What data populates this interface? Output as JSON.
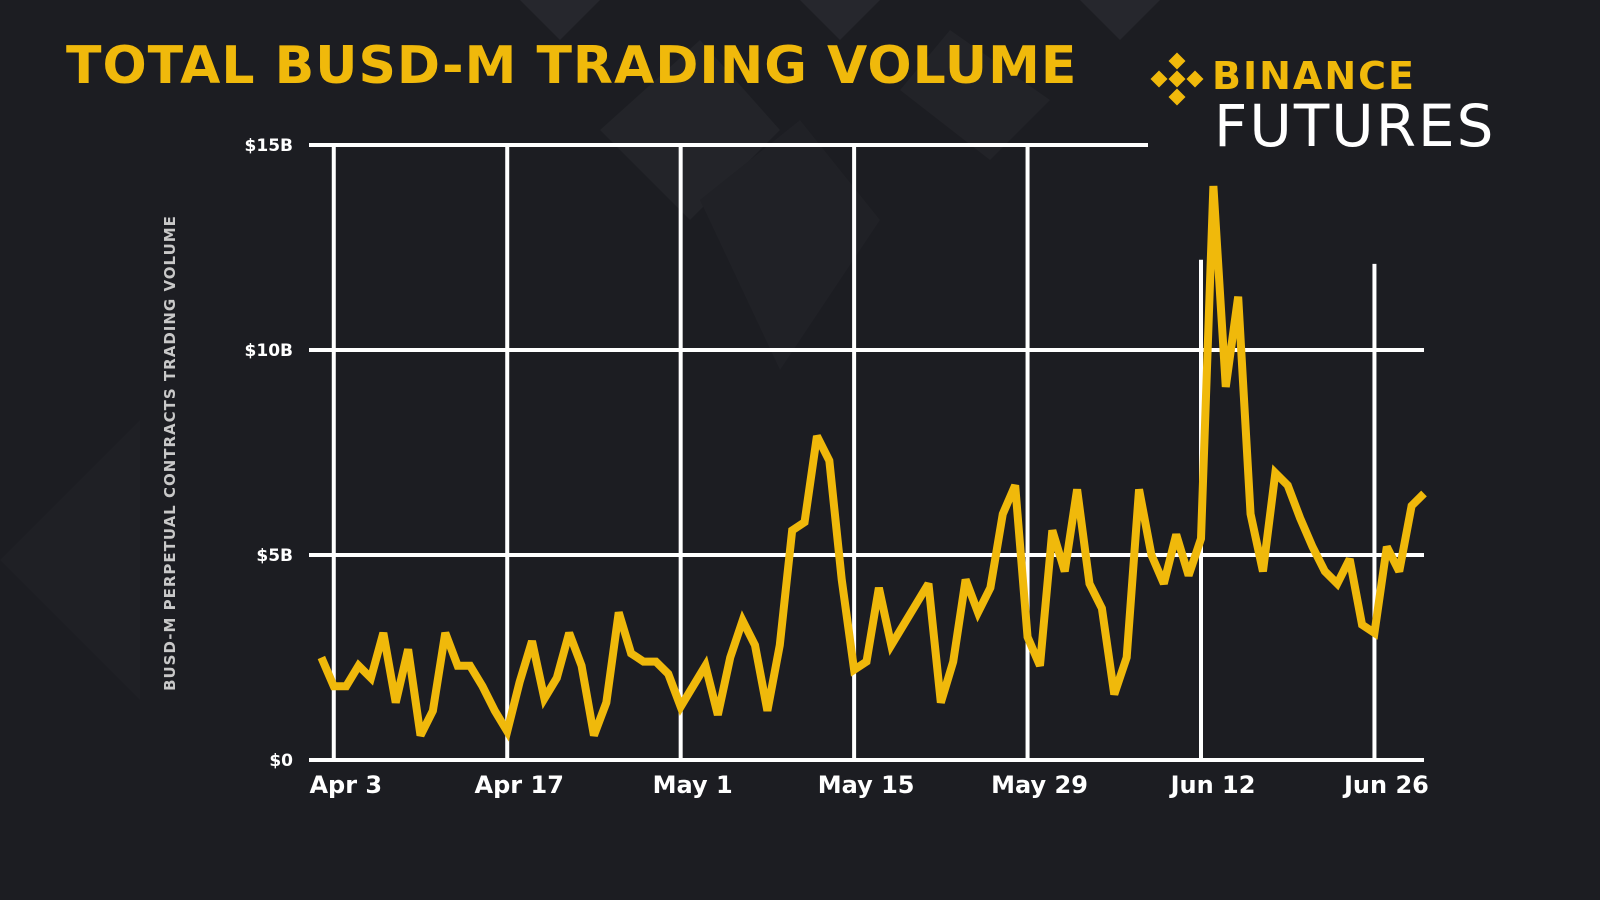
{
  "title": "TOTAL BUSD-M TRADING VOLUME",
  "brand": {
    "name": "BINANCE",
    "sub": "FUTURES",
    "logo_icon": "binance-diamond-logo-icon"
  },
  "colors": {
    "accent": "#f0b90b",
    "background": "#1c1d22",
    "grid": "#ffffff"
  },
  "chart_data": {
    "type": "line",
    "title": "TOTAL BUSD-M TRADING VOLUME",
    "xlabel": "",
    "ylabel": "BUSD-M PERPETUAL CONTRACTS TRADING VOLUME",
    "ylim": [
      0,
      15
    ],
    "y_ticks": [
      {
        "value": 0,
        "label": "$0"
      },
      {
        "value": 5,
        "label": "$5B"
      },
      {
        "value": 10,
        "label": "$10B"
      },
      {
        "value": 15,
        "label": "$15B"
      }
    ],
    "x_ticks": [
      {
        "day": 1,
        "label": "Apr 3"
      },
      {
        "day": 15,
        "label": "Apr 17"
      },
      {
        "day": 29,
        "label": "May 1"
      },
      {
        "day": 43,
        "label": "May 15"
      },
      {
        "day": 57,
        "label": "May 29"
      },
      {
        "day": 71,
        "label": "Jun 12"
      },
      {
        "day": 85,
        "label": "Jun 26"
      }
    ],
    "xlim": [
      -1,
      89
    ],
    "grid": true,
    "series": [
      {
        "color": "#f0b90b",
        "values": [
          2.5,
          1.8,
          1.8,
          2.3,
          2.0,
          3.1,
          1.4,
          2.7,
          0.6,
          1.2,
          3.1,
          2.3,
          2.3,
          1.8,
          1.2,
          0.7,
          1.9,
          2.9,
          1.5,
          2.0,
          3.1,
          2.3,
          0.6,
          1.4,
          3.6,
          2.6,
          2.4,
          2.4,
          2.1,
          1.3,
          1.8,
          2.3,
          1.1,
          2.5,
          3.4,
          2.8,
          1.2,
          2.8,
          5.6,
          5.8,
          7.9,
          7.3,
          4.4,
          2.2,
          2.4,
          4.2,
          2.8,
          3.3,
          3.8,
          4.3,
          1.4,
          2.4,
          4.4,
          3.6,
          4.2,
          6.0,
          6.7,
          3.0,
          2.3,
          5.6,
          4.6,
          6.6,
          4.3,
          3.7,
          1.6,
          2.5,
          6.6,
          5.0,
          4.3,
          5.5,
          4.5,
          5.4,
          14.0,
          9.1,
          11.3,
          6.0,
          4.6,
          7.0,
          6.7,
          5.9,
          5.2,
          4.6,
          4.3,
          4.9,
          3.3,
          3.1,
          5.2,
          4.6,
          6.2,
          6.5
        ]
      }
    ]
  }
}
